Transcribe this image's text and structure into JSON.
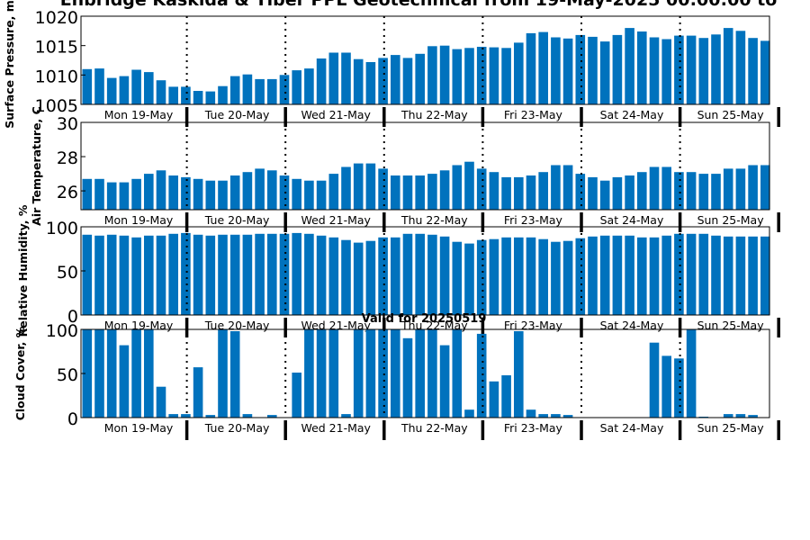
{
  "figure": {
    "title": "Enbridge  Kaskida & Tiber PPL Geotechnical from 19-May-2025 00:00:00 to",
    "valid_label": "Valid for 20250519",
    "accent_color": "#0072bd"
  },
  "chart_data": [
    {
      "type": "bar",
      "ylabel": "Surface Pressure, mb",
      "ylim": [
        1005,
        1020
      ],
      "yticks": [
        1005,
        1010,
        1015,
        1020
      ],
      "day_labels": [
        "Mon 19-May",
        "Tue 20-May",
        "Wed 21-May",
        "Thu 22-May",
        "Fri 23-May",
        "Sat 24-May",
        "Sun 25-May"
      ],
      "values": [
        1011,
        1011.1,
        1009.5,
        1009.8,
        1010.9,
        1010.5,
        1009.1,
        1008,
        1008,
        1007.3,
        1007.2,
        1008.1,
        1009.8,
        1010.1,
        1009.3,
        1009.3,
        1010,
        1010.8,
        1011.1,
        1012.8,
        1013.8,
        1013.8,
        1012.7,
        1012.2,
        1012.9,
        1013.4,
        1012.9,
        1013.6,
        1014.9,
        1015,
        1014.4,
        1014.6,
        1014.8,
        1014.7,
        1014.6,
        1015.5,
        1017.1,
        1017.3,
        1016.4,
        1016.2,
        1016.8,
        1016.5,
        1015.7,
        1016.8,
        1018,
        1017.4,
        1016.4,
        1016.1,
        1016.7,
        1016.7,
        1016.3,
        1016.9,
        1018,
        1017.5,
        1016.3,
        1015.8
      ]
    },
    {
      "type": "bar",
      "ylabel": "Air Temperature, C",
      "ylim": [
        24.9,
        30
      ],
      "yticks": [
        26,
        28,
        30
      ],
      "day_labels": [
        "Mon 19-May",
        "Tue 20-May",
        "Wed 21-May",
        "Thu 22-May",
        "Fri 23-May",
        "Sat 24-May",
        "Sun 25-May"
      ],
      "values": [
        26.7,
        26.7,
        26.5,
        26.5,
        26.7,
        27,
        27.2,
        26.9,
        26.8,
        26.7,
        26.6,
        26.6,
        26.9,
        27.1,
        27.3,
        27.2,
        26.9,
        26.7,
        26.6,
        26.6,
        27,
        27.4,
        27.6,
        27.6,
        27.3,
        26.9,
        26.9,
        26.9,
        27,
        27.2,
        27.5,
        27.7,
        27.3,
        27.1,
        26.8,
        26.8,
        26.9,
        27.1,
        27.5,
        27.5,
        27,
        26.8,
        26.6,
        26.8,
        26.9,
        27.1,
        27.4,
        27.4,
        27.1,
        27.1,
        27,
        27,
        27.3,
        27.3,
        27.5,
        27.5
      ]
    },
    {
      "type": "bar",
      "ylabel": "Relative Humidity, %",
      "ylim": [
        0,
        100
      ],
      "yticks": [
        0,
        50,
        100
      ],
      "day_labels": [
        "Mon 19-May",
        "Tue 20-May",
        "Wed 21-May",
        "Thu 22-May",
        "Fri 23-May",
        "Sat 24-May",
        "Sun 25-May"
      ],
      "values": [
        91,
        90,
        91,
        90,
        88,
        90,
        90,
        92,
        93,
        91,
        90,
        91,
        91,
        91,
        92,
        92,
        92,
        93,
        92,
        90,
        88,
        85,
        82,
        84,
        88,
        88,
        92,
        92,
        91,
        89,
        83,
        81,
        85,
        86,
        88,
        88,
        88,
        86,
        83,
        84,
        87,
        89,
        90,
        90,
        90,
        88,
        88,
        90,
        92,
        92,
        92,
        90,
        89,
        89,
        89,
        89
      ]
    },
    {
      "type": "bar",
      "ylabel": "Cloud Cover, %",
      "ylim": [
        0,
        100
      ],
      "yticks": [
        0,
        50,
        100
      ],
      "day_labels": [
        "Mon 19-May",
        "Tue 20-May",
        "Wed 21-May",
        "Thu 22-May",
        "Fri 23-May",
        "Sat 24-May",
        "Sun 25-May"
      ],
      "values": [
        100,
        100,
        100,
        82,
        100,
        100,
        35,
        4,
        4,
        57,
        3,
        100,
        98,
        4,
        0,
        3,
        0,
        51,
        100,
        100,
        100,
        4,
        100,
        100,
        100,
        100,
        90,
        100,
        100,
        82,
        100,
        9,
        95,
        41,
        48,
        98,
        9,
        4,
        4,
        3,
        0,
        0,
        0,
        0,
        0,
        0,
        85,
        70,
        67,
        100,
        1,
        0,
        4,
        4,
        3,
        0
      ]
    }
  ]
}
